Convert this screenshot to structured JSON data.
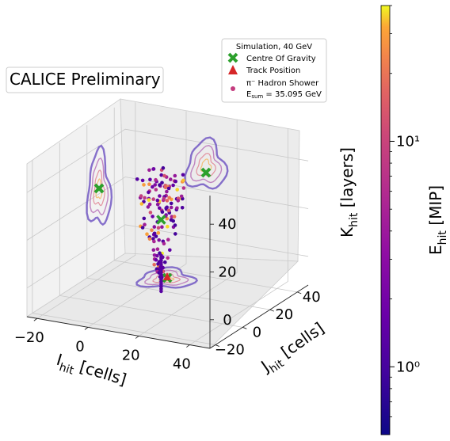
{
  "chart_data": {
    "type": "scatter",
    "projection": "3d",
    "badge": "CALICE Preliminary",
    "axes": {
      "x": {
        "label_main": "I",
        "label_sub": "hit",
        "label_rest": " [cells]",
        "range": [
          -24,
          48
        ],
        "ticks": [
          -20,
          0,
          20,
          40
        ],
        "tick_labels": [
          "−20",
          "0",
          "20",
          "40"
        ]
      },
      "y": {
        "label_main": "J",
        "label_sub": "hit",
        "label_rest": " [cells]",
        "range": [
          -24,
          48
        ],
        "ticks": [
          -20,
          0,
          20,
          40
        ],
        "tick_labels": [
          "−20",
          "0",
          "20",
          "40"
        ]
      },
      "z": {
        "label_main": "K",
        "label_sub": "hit",
        "label_rest": " [layers]",
        "range": [
          -12,
          52
        ],
        "ticks": [
          0,
          20,
          40
        ],
        "tick_labels": [
          "0",
          "20",
          "40"
        ]
      }
    },
    "grid": true,
    "legend": {
      "placement": "top-right",
      "title": "Simulation, 40 GeV",
      "entries": [
        {
          "label": "Centre Of Gravity",
          "marker": "x-cross",
          "color": "#2ca02c"
        },
        {
          "label": "Track Position",
          "marker": "triangle",
          "color": "#d62728"
        },
        {
          "label_line1": "π⁻ Hadron Shower",
          "label_line2_main": "E",
          "label_line2_sub": "sum",
          "label_line2_rest": " = 35.095 GeV",
          "marker": "dot",
          "color": "#c43c7f"
        }
      ]
    },
    "colorbar": {
      "label_main": "E",
      "label_sub": "hit",
      "label_rest": " [MIP]",
      "scale": "log",
      "range": [
        0.5,
        40
      ],
      "ticks": [
        1,
        10
      ],
      "tick_labels": [
        "10⁰",
        "10¹"
      ],
      "colormap": "plasma"
    },
    "centre_of_gravity": {
      "x": 10,
      "y": 11,
      "z": 22
    },
    "track_position": {
      "x": 10,
      "y": 11,
      "z": -10
    }
  }
}
